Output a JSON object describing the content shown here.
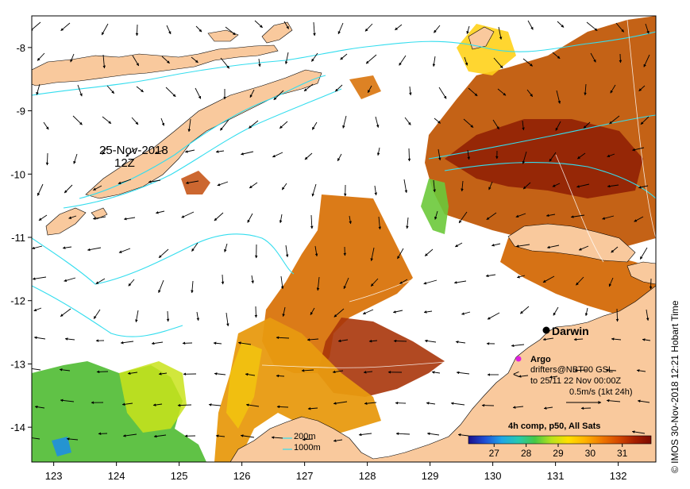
{
  "map": {
    "date_label_line1": "25-Nov-2018",
    "date_label_line2": "12Z",
    "city": "Darwin",
    "composite_label": "4h comp, p50, All Sats",
    "x_ticks": [
      "123",
      "124",
      "125",
      "126",
      "127",
      "128",
      "129",
      "130",
      "131",
      "132"
    ],
    "y_ticks": [
      "-8",
      "-9",
      "-10",
      "-11",
      "-12",
      "-13",
      "-14"
    ],
    "lon_range": [
      122.65,
      132.6
    ],
    "lat_range": [
      -14.55,
      -7.5
    ],
    "colorbar_ticks": [
      "27",
      "28",
      "29",
      "30",
      "31"
    ],
    "colorbar_range": [
      26.2,
      31.9
    ],
    "colorbar_colors": [
      "#1a0f8c",
      "#1f4fd6",
      "#1fa6e6",
      "#27c9b0",
      "#46c845",
      "#b9e21d",
      "#ffe000",
      "#ffb400",
      "#f07a00",
      "#d64a00",
      "#a82000",
      "#7d0a00"
    ],
    "legend": {
      "argo": "Argo",
      "drifters": "drifters@NBT00 GSL",
      "drifters_to": "to 25/11 22 Nov 00:00Z",
      "scale": "0.5m/s (1kt 24h)",
      "iso_200": "200m",
      "iso_1000": "1000m"
    },
    "colors": {
      "land": "#f9c99d",
      "isobath": "#33ddee",
      "marker": "#e020e0"
    },
    "credit": "© IMOS 30-Nov-2018 12:21 Hobart Time"
  }
}
